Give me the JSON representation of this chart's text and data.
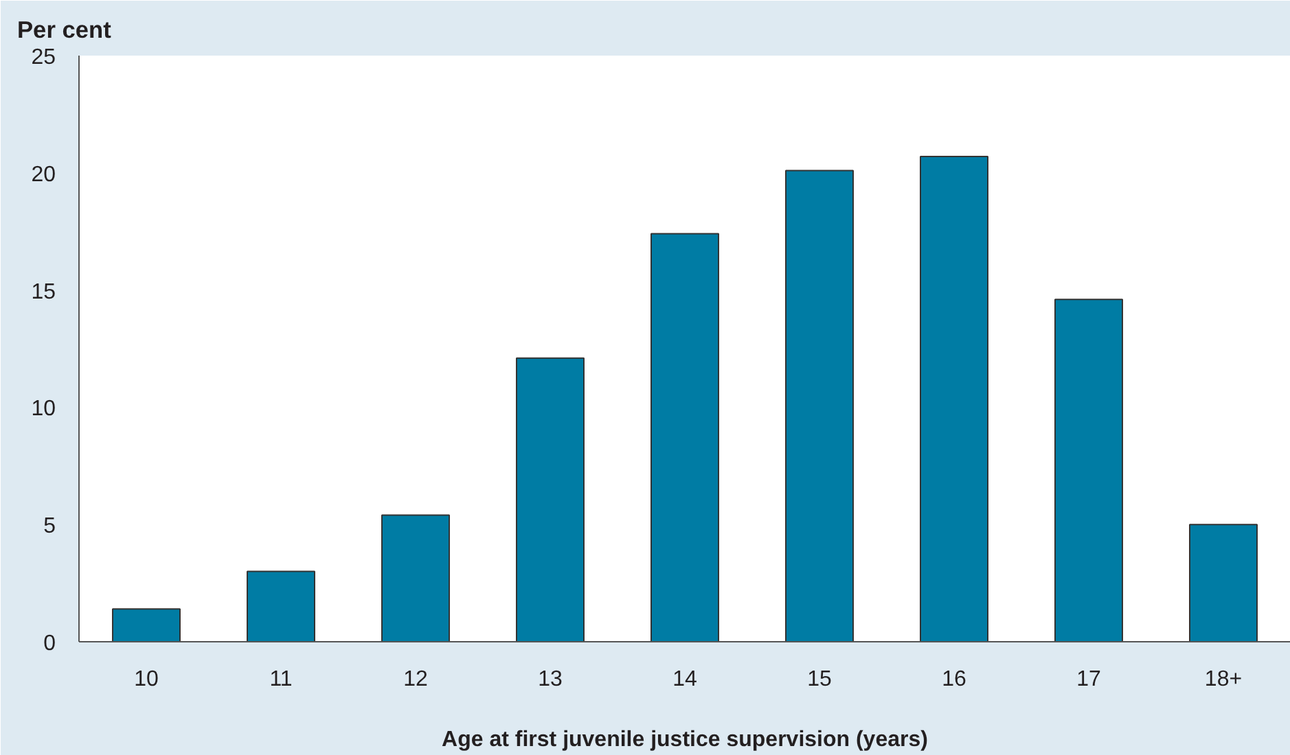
{
  "chart_data": {
    "type": "bar",
    "ylabel": "Per cent",
    "xlabel": "Age at first juvenile justice supervision (years)",
    "categories": [
      "10",
      "11",
      "12",
      "13",
      "14",
      "15",
      "16",
      "17",
      "18+"
    ],
    "values": [
      1.4,
      3.0,
      5.4,
      12.1,
      17.4,
      20.1,
      20.7,
      14.6,
      5.0
    ],
    "color": "#007ca4",
    "ylim": [
      0,
      25
    ],
    "yticks": [
      0,
      5,
      10,
      15,
      20,
      25
    ],
    "grid": false
  }
}
